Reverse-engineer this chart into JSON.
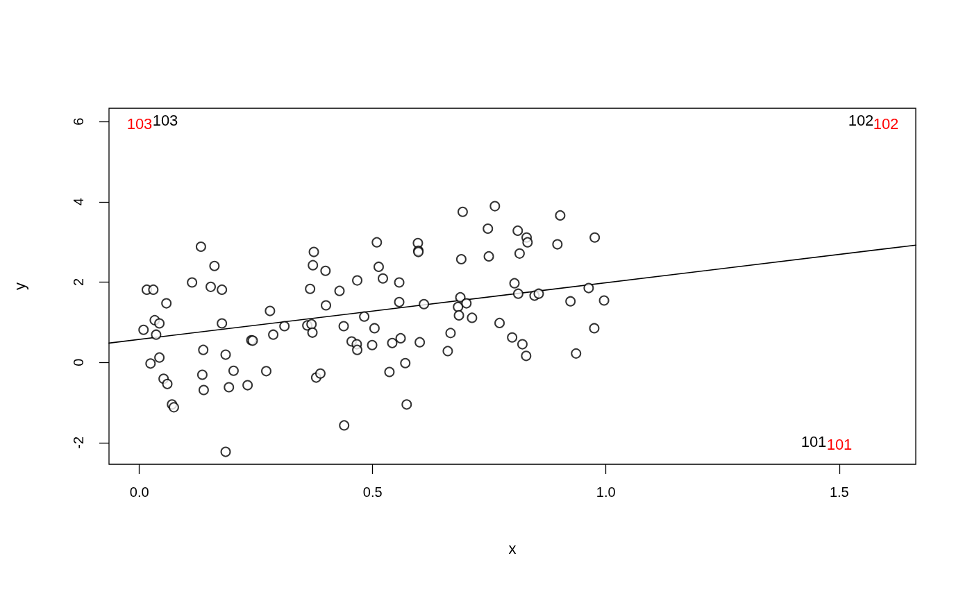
{
  "chart_data": {
    "type": "scatter",
    "xlabel": "x",
    "ylabel": "y",
    "xlim": [
      -0.065,
      1.664
    ],
    "ylim": [
      -2.54,
      6.33
    ],
    "xticks": [
      {
        "value": 0,
        "label": "0.0"
      },
      0.5,
      {
        "value": 1,
        "label": "1.0"
      },
      1.5
    ],
    "yticks": [
      -2,
      0,
      2,
      4,
      6
    ],
    "grid": false,
    "annotations": [
      "101",
      "102",
      "103",
      "101",
      "102",
      "103"
    ],
    "series": [
      {
        "marker": "circle",
        "color": "#000000",
        "x": [
          0.009,
          0.016,
          0.024,
          0.03,
          0.033,
          0.036,
          0.043,
          0.043,
          0.052,
          0.058,
          0.06,
          0.07,
          0.074,
          0.113,
          0.132,
          0.137,
          0.135,
          0.138,
          0.153,
          0.161,
          0.177,
          0.177,
          0.185,
          0.185,
          0.192,
          0.202,
          0.232,
          0.24,
          0.243,
          0.272,
          0.28,
          0.287,
          0.311,
          0.36,
          0.366,
          0.369,
          0.371,
          0.372,
          0.374,
          0.379,
          0.388,
          0.399,
          0.4,
          0.429,
          0.438,
          0.439,
          0.455,
          0.466,
          0.467,
          0.467,
          0.482,
          0.499,
          0.504,
          0.509,
          0.513,
          0.522,
          0.536,
          0.542,
          0.557,
          0.557,
          0.56,
          0.57,
          0.573,
          0.597,
          0.598,
          0.598,
          0.601,
          0.61,
          0.661,
          0.667,
          0.683,
          0.685,
          0.688,
          0.69,
          0.693,
          0.701,
          0.713,
          0.747,
          0.749,
          0.762,
          0.772,
          0.799,
          0.804,
          0.811,
          0.812,
          0.815,
          0.821,
          0.829,
          0.83,
          0.832,
          0.847,
          0.856,
          0.896,
          0.902,
          0.924,
          0.936,
          0.963,
          0.975,
          0.976,
          0.996
        ],
        "values": [
          0.81,
          1.81,
          -0.03,
          1.81,
          1.05,
          0.69,
          0.97,
          0.12,
          -0.41,
          1.47,
          -0.54,
          -1.05,
          -1.12,
          1.99,
          2.88,
          0.31,
          -0.31,
          -0.69,
          1.88,
          2.4,
          1.81,
          0.97,
          0.19,
          -2.23,
          -0.62,
          -0.21,
          -0.57,
          0.55,
          0.54,
          -0.22,
          1.28,
          0.69,
          0.9,
          0.92,
          1.83,
          0.95,
          0.74,
          2.42,
          2.75,
          -0.38,
          -0.28,
          2.28,
          1.42,
          1.78,
          0.9,
          -1.57,
          0.52,
          0.45,
          2.04,
          0.31,
          1.14,
          0.43,
          0.85,
          2.99,
          2.38,
          2.09,
          -0.24,
          0.48,
          1.99,
          1.5,
          0.6,
          -0.02,
          -1.05,
          2.97,
          2.78,
          2.75,
          0.5,
          1.45,
          0.28,
          0.73,
          1.38,
          1.17,
          1.62,
          2.57,
          3.75,
          1.47,
          1.11,
          3.33,
          2.64,
          3.89,
          0.98,
          0.62,
          1.97,
          3.28,
          1.71,
          2.71,
          0.45,
          0.16,
          3.11,
          2.99,
          1.66,
          1.71,
          2.94,
          3.66,
          1.52,
          0.22,
          1.85,
          0.85,
          3.11,
          1.54
        ]
      },
      {
        "type": "line",
        "marker": "none",
        "line_style": "solid",
        "color": "#000000",
        "x": [
          -0.065,
          1.664
        ],
        "values": [
          0.48,
          2.92
        ]
      }
    ]
  }
}
